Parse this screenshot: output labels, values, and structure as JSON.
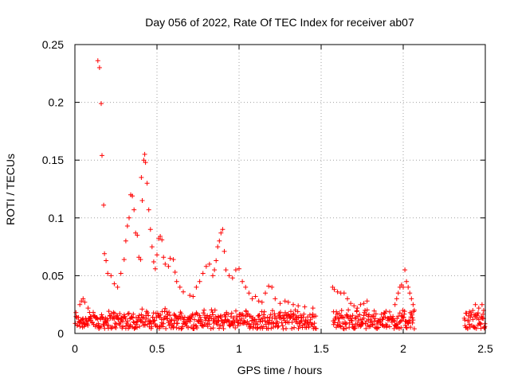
{
  "chart_data": {
    "type": "scatter",
    "title": "Day 056 of 2022, Rate Of TEC Index for receiver ab07",
    "xlabel": "GPS time / hours",
    "ylabel": "ROTI / TECUs",
    "xlim": [
      0,
      2.5
    ],
    "ylim": [
      0,
      0.25
    ],
    "x_ticks": [
      0,
      0.5,
      1,
      1.5,
      2,
      2.5
    ],
    "x_tick_labels": [
      "0",
      "0.5",
      "1",
      "1.5",
      "2",
      "2.5"
    ],
    "y_ticks": [
      0,
      0.05,
      0.1,
      0.15,
      0.2,
      0.25
    ],
    "y_tick_labels": [
      "0",
      "0.05",
      "0.1",
      "0.15",
      "0.2",
      "0.25"
    ],
    "grid": true,
    "marker": "+",
    "color": "#ff0000",
    "series": [
      {
        "name": "ROTI",
        "points": [
          [
            0.14,
            0.236
          ],
          [
            0.15,
            0.23
          ],
          [
            0.16,
            0.199
          ],
          [
            0.165,
            0.154
          ],
          [
            0.175,
            0.111
          ],
          [
            0.18,
            0.069
          ],
          [
            0.19,
            0.063
          ],
          [
            0.2,
            0.052
          ],
          [
            0.22,
            0.05
          ],
          [
            0.24,
            0.043
          ],
          [
            0.26,
            0.04
          ],
          [
            0.28,
            0.052
          ],
          [
            0.3,
            0.064
          ],
          [
            0.31,
            0.08
          ],
          [
            0.32,
            0.093
          ],
          [
            0.33,
            0.1
          ],
          [
            0.34,
            0.12
          ],
          [
            0.35,
            0.119
          ],
          [
            0.36,
            0.107
          ],
          [
            0.37,
            0.087
          ],
          [
            0.38,
            0.085
          ],
          [
            0.39,
            0.066
          ],
          [
            0.4,
            0.064
          ],
          [
            0.405,
            0.135
          ],
          [
            0.41,
            0.115
          ],
          [
            0.42,
            0.15
          ],
          [
            0.425,
            0.155
          ],
          [
            0.43,
            0.148
          ],
          [
            0.44,
            0.13
          ],
          [
            0.45,
            0.107
          ],
          [
            0.46,
            0.09
          ],
          [
            0.47,
            0.075
          ],
          [
            0.48,
            0.062
          ],
          [
            0.49,
            0.056
          ],
          [
            0.5,
            0.068
          ],
          [
            0.51,
            0.082
          ],
          [
            0.52,
            0.084
          ],
          [
            0.53,
            0.081
          ],
          [
            0.54,
            0.066
          ],
          [
            0.55,
            0.06
          ],
          [
            0.57,
            0.058
          ],
          [
            0.58,
            0.065
          ],
          [
            0.6,
            0.064
          ],
          [
            0.61,
            0.053
          ],
          [
            0.62,
            0.045
          ],
          [
            0.64,
            0.04
          ],
          [
            0.66,
            0.036
          ],
          [
            0.7,
            0.033
          ],
          [
            0.72,
            0.032
          ],
          [
            0.74,
            0.04
          ],
          [
            0.76,
            0.045
          ],
          [
            0.78,
            0.052
          ],
          [
            0.8,
            0.058
          ],
          [
            0.82,
            0.06
          ],
          [
            0.84,
            0.05
          ],
          [
            0.85,
            0.055
          ],
          [
            0.86,
            0.063
          ],
          [
            0.87,
            0.075
          ],
          [
            0.88,
            0.08
          ],
          [
            0.89,
            0.087
          ],
          [
            0.9,
            0.09
          ],
          [
            0.91,
            0.071
          ],
          [
            0.92,
            0.055
          ],
          [
            0.94,
            0.05
          ],
          [
            0.96,
            0.048
          ],
          [
            0.98,
            0.055
          ],
          [
            1.0,
            0.056
          ],
          [
            1.02,
            0.045
          ],
          [
            1.04,
            0.04
          ],
          [
            1.06,
            0.035
          ],
          [
            1.08,
            0.03
          ],
          [
            1.1,
            0.032
          ],
          [
            1.12,
            0.028
          ],
          [
            1.14,
            0.027
          ],
          [
            1.16,
            0.035
          ],
          [
            1.18,
            0.041
          ],
          [
            1.2,
            0.04
          ],
          [
            1.22,
            0.03
          ],
          [
            1.25,
            0.026
          ],
          [
            1.28,
            0.028
          ],
          [
            1.3,
            0.027
          ],
          [
            1.33,
            0.025
          ],
          [
            1.36,
            0.024
          ],
          [
            1.4,
            0.023
          ],
          [
            1.45,
            0.022
          ],
          [
            0.03,
            0.025
          ],
          [
            0.04,
            0.028
          ],
          [
            0.05,
            0.03
          ],
          [
            0.06,
            0.027
          ],
          [
            0.08,
            0.022
          ],
          [
            1.57,
            0.04
          ],
          [
            1.58,
            0.038
          ],
          [
            1.6,
            0.036
          ],
          [
            1.62,
            0.035
          ],
          [
            1.64,
            0.035
          ],
          [
            1.66,
            0.03
          ],
          [
            1.68,
            0.026
          ],
          [
            1.7,
            0.024
          ],
          [
            1.72,
            0.022
          ],
          [
            1.74,
            0.025
          ],
          [
            1.76,
            0.026
          ],
          [
            1.78,
            0.028
          ],
          [
            1.95,
            0.025
          ],
          [
            1.96,
            0.03
          ],
          [
            1.97,
            0.035
          ],
          [
            1.98,
            0.04
          ],
          [
            1.99,
            0.042
          ],
          [
            2.0,
            0.04
          ],
          [
            2.01,
            0.055
          ],
          [
            2.02,
            0.045
          ],
          [
            2.03,
            0.04
          ],
          [
            2.04,
            0.035
          ],
          [
            2.05,
            0.03
          ],
          [
            2.06,
            0.025
          ],
          [
            2.44,
            0.025
          ],
          [
            2.46,
            0.022
          ],
          [
            2.48,
            0.025
          ],
          [
            2.49,
            0.02
          ]
        ],
        "baseline_band": {
          "ranges": [
            [
              0.0,
              1.47
            ],
            [
              1.57,
              2.07
            ],
            [
              2.37,
              2.5
            ]
          ],
          "ymin": 0.004,
          "ymax": 0.022
        }
      }
    ]
  }
}
